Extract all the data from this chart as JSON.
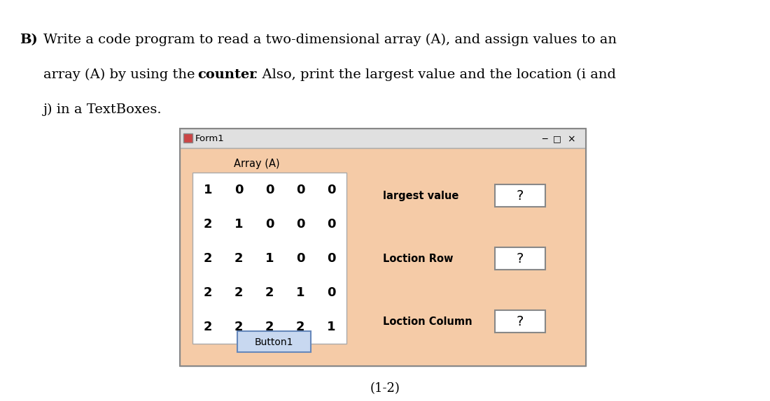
{
  "bg_color": "#ffffff",
  "form_bg": "#F5CBA7",
  "form_title": "Form1",
  "array_label": "Array (A)",
  "array_data": [
    [
      1,
      0,
      0,
      0,
      0
    ],
    [
      2,
      1,
      0,
      0,
      0
    ],
    [
      2,
      2,
      1,
      0,
      0
    ],
    [
      2,
      2,
      2,
      1,
      0
    ],
    [
      2,
      2,
      2,
      2,
      1
    ]
  ],
  "largest_value_label": "largest value",
  "largest_value_text": "?",
  "loction_row_label": "Loction Row",
  "loction_row_text": "?",
  "loction_col_label": "Loction Column",
  "loction_col_text": "?",
  "button_label": "Button1",
  "caption": "(1-2)",
  "line1_pre": "B) Write a code program to read a two-dimensional array (A), and assign values to an",
  "line2_pre": "array (A) by using the ",
  "line2_bold": "counter",
  "line2_post": ". Also, print the largest value and the location (i and",
  "line3": "j) in a TextBoxes."
}
